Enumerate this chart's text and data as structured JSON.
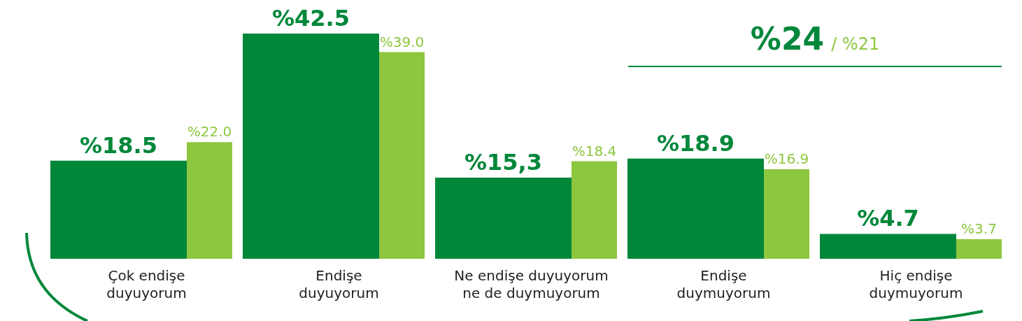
{
  "chart_data": {
    "type": "bar",
    "categories": [
      "Çok endişe duyuyorum",
      "Endişe duyuyorum",
      "Ne endişe duyuyorum ne de duymuyorum",
      "Endişe duymuyorum",
      "Hiç endişe duymuyorum"
    ],
    "series": [
      {
        "color": "#00873a",
        "values": [
          18.5,
          42.5,
          15.3,
          18.9,
          4.7
        ],
        "value_labels": [
          "%18.5",
          "%42.5",
          "%15,3",
          "%18.9",
          "%4.7"
        ]
      },
      {
        "color": "#8dc63f",
        "values": [
          22.0,
          39.0,
          18.4,
          16.9,
          3.7
        ],
        "value_labels": [
          "%22.0",
          "%39.0",
          "%18.4",
          "%16.9",
          "%3.7"
        ]
      }
    ],
    "annotations": [
      "%24",
      "/ %21"
    ],
    "tick_labels": "x"
  }
}
